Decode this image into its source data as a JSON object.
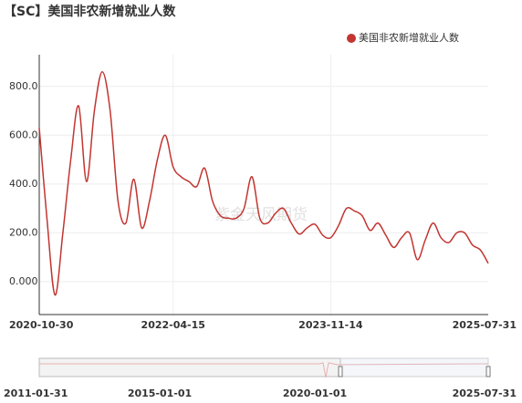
{
  "chart_data": {
    "type": "line",
    "title": "【SC】美国非农新增就业人数",
    "watermark": "紫金天风期货",
    "categories": [
      "2020-10-30",
      null,
      null,
      null,
      null,
      null,
      null,
      null,
      null,
      null,
      null,
      null,
      null,
      null,
      null,
      null,
      null,
      "2022-04-15",
      null,
      null,
      null,
      null,
      null,
      null,
      null,
      null,
      null,
      null,
      null,
      null,
      null,
      null,
      null,
      null,
      null,
      null,
      null,
      "2023-11-14",
      null,
      null,
      null,
      null,
      null,
      null,
      null,
      null,
      null,
      null,
      null,
      null,
      null,
      null,
      null,
      null,
      null,
      null,
      null,
      "2025-07-31"
    ],
    "series": [
      {
        "name": "美国非农新增就业人数",
        "color": "#c23531",
        "values": [
          630,
          250,
          -55,
          200,
          500,
          720,
          410,
          700,
          860,
          700,
          330,
          240,
          420,
          220,
          330,
          500,
          600,
          470,
          430,
          410,
          390,
          465,
          330,
          270,
          260,
          260,
          300,
          430,
          260,
          240,
          280,
          300,
          240,
          195,
          220,
          235,
          190,
          180,
          230,
          300,
          290,
          270,
          210,
          240,
          190,
          140,
          180,
          200,
          90,
          170,
          240,
          180,
          160,
          200,
          200,
          150,
          130,
          75
        ]
      }
    ],
    "ylim": [
      -135,
      930
    ],
    "yticks": [
      {
        "value": 0,
        "label": "0.000"
      },
      {
        "value": 200,
        "label": "200.0"
      },
      {
        "value": 400,
        "label": "400.0"
      },
      {
        "value": 600,
        "label": "600.0"
      },
      {
        "value": 800,
        "label": "800.0"
      }
    ],
    "grid": true,
    "legend": "top-right",
    "slider": {
      "labels": [
        "2011-01-31",
        "2015-01-01",
        "2020-01-01",
        "2025-07-31"
      ]
    }
  }
}
